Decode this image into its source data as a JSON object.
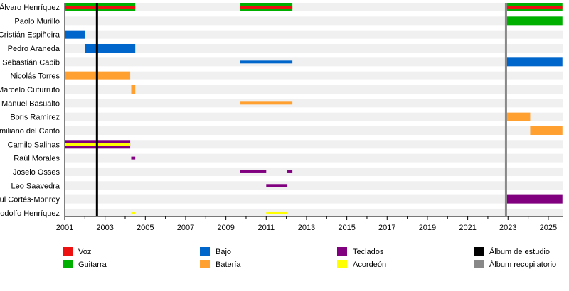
{
  "chart_data": {
    "type": "timeline",
    "title": "",
    "xlim": [
      2001,
      2025.7
    ],
    "xticks": [
      2001,
      2003,
      2005,
      2007,
      2009,
      2011,
      2013,
      2015,
      2017,
      2019,
      2021,
      2023,
      2025
    ],
    "members": [
      "Álvaro Henríquez",
      "Paolo Murillo",
      "Cristián Espiñeira",
      "Pedro Araneda",
      "Sebastián Cabib",
      "Nicolás Torres",
      "Marcelo Cuturrufo",
      "Manuel Basualto",
      "Boris Ramírez",
      "Maximiliano del Canto",
      "Camilo Salinas",
      "Raúl Morales",
      "Joselo Osses",
      "Leo Saavedra",
      "Raul Cortés-Monroy",
      "Rodolfo Henríquez"
    ],
    "roles": {
      "voz": {
        "label": "Voz",
        "color": "#ee1111"
      },
      "guitarra": {
        "label": "Guitarra",
        "color": "#00b000"
      },
      "bajo": {
        "label": "Bajo",
        "color": "#0066cc"
      },
      "bateria": {
        "label": "Batería",
        "color": "#ffa030"
      },
      "teclados": {
        "label": "Teclados",
        "color": "#800080"
      },
      "acordeon": {
        "label": "Acordeón",
        "color": "#ffff00"
      },
      "estudio": {
        "label": "Álbum de estudio",
        "color": "#000000"
      },
      "recopilatorio": {
        "label": "Álbum recopilatorio",
        "color": "#888888"
      }
    },
    "legend_order": [
      "voz",
      "guitarra",
      "bajo",
      "bateria",
      "teclados",
      "acordeon",
      "estudio",
      "recopilatorio"
    ],
    "segments": [
      {
        "member": 0,
        "role": "guitarra",
        "start": 2001,
        "end": 2004.5,
        "thin": false
      },
      {
        "member": 0,
        "role": "voz",
        "start": 2001,
        "end": 2004.5,
        "thin": true
      },
      {
        "member": 0,
        "role": "guitarra",
        "start": 2009.7,
        "end": 2012.3,
        "thin": false
      },
      {
        "member": 0,
        "role": "voz",
        "start": 2009.7,
        "end": 2012.3,
        "thin": true
      },
      {
        "member": 0,
        "role": "guitarra",
        "start": 2022.9,
        "end": 2025.7,
        "thin": false
      },
      {
        "member": 0,
        "role": "voz",
        "start": 2022.9,
        "end": 2025.7,
        "thin": true
      },
      {
        "member": 1,
        "role": "guitarra",
        "start": 2022.9,
        "end": 2025.7,
        "thin": false
      },
      {
        "member": 2,
        "role": "bajo",
        "start": 2001,
        "end": 2002.0,
        "thin": false
      },
      {
        "member": 3,
        "role": "bajo",
        "start": 2002.0,
        "end": 2004.5,
        "thin": false
      },
      {
        "member": 4,
        "role": "bajo",
        "start": 2009.7,
        "end": 2012.3,
        "thin": true
      },
      {
        "member": 4,
        "role": "bajo",
        "start": 2022.9,
        "end": 2025.7,
        "thin": false
      },
      {
        "member": 5,
        "role": "bateria",
        "start": 2001,
        "end": 2004.25,
        "thin": false
      },
      {
        "member": 6,
        "role": "bateria",
        "start": 2004.3,
        "end": 2004.5,
        "thin": false
      },
      {
        "member": 7,
        "role": "bateria",
        "start": 2009.7,
        "end": 2012.3,
        "thin": true
      },
      {
        "member": 8,
        "role": "bateria",
        "start": 2022.9,
        "end": 2024.1,
        "thin": false
      },
      {
        "member": 9,
        "role": "bateria",
        "start": 2024.1,
        "end": 2025.7,
        "thin": false
      },
      {
        "member": 10,
        "role": "teclados",
        "start": 2001,
        "end": 2004.25,
        "thin": false
      },
      {
        "member": 10,
        "role": "acordeon",
        "start": 2001,
        "end": 2004.25,
        "thin": true
      },
      {
        "member": 11,
        "role": "teclados",
        "start": 2004.3,
        "end": 2004.5,
        "thin": true
      },
      {
        "member": 12,
        "role": "teclados",
        "start": 2009.7,
        "end": 2011.0,
        "thin": true
      },
      {
        "member": 12,
        "role": "teclados",
        "start": 2012.05,
        "end": 2012.3,
        "thin": true
      },
      {
        "member": 13,
        "role": "teclados",
        "start": 2011.0,
        "end": 2012.05,
        "thin": true
      },
      {
        "member": 14,
        "role": "teclados",
        "start": 2022.9,
        "end": 2025.7,
        "thin": false
      },
      {
        "member": 15,
        "role": "acordeon",
        "start": 2004.3,
        "end": 2004.5,
        "thin": true
      },
      {
        "member": 15,
        "role": "acordeon",
        "start": 2011.0,
        "end": 2012.05,
        "thin": true
      }
    ],
    "album_lines": [
      {
        "role": "estudio",
        "year": 2002.6
      },
      {
        "role": "recopilatorio",
        "year": 2022.9
      }
    ]
  }
}
